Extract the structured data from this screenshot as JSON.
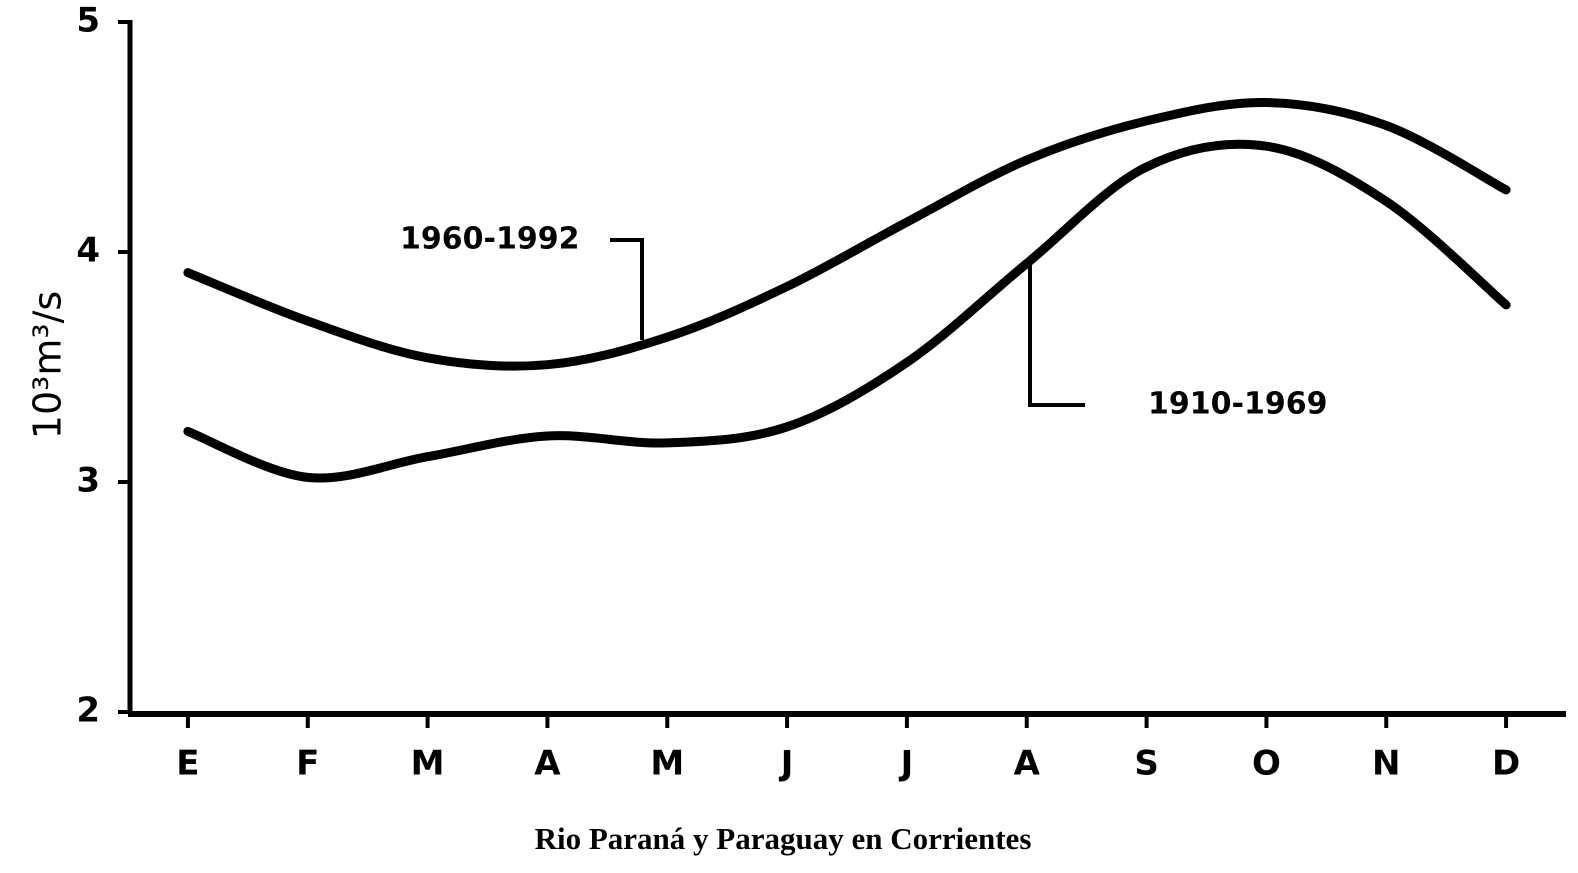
{
  "chart_data": {
    "type": "line",
    "title": "Rio Paraná y Paraguay en Corrientes",
    "y_label": "10³m³/s",
    "categories": [
      "E",
      "F",
      "M",
      "A",
      "M",
      "J",
      "J",
      "A",
      "S",
      "O",
      "N",
      "D"
    ],
    "series": [
      {
        "name": "1960-1992",
        "color": "#000000",
        "values": [
          3.91,
          3.7,
          3.54,
          3.51,
          3.63,
          3.85,
          4.13,
          4.4,
          4.57,
          4.65,
          4.55,
          4.27
        ]
      },
      {
        "name": "1910-1969",
        "color": "#000000",
        "values": [
          3.22,
          3.02,
          3.11,
          3.2,
          3.17,
          3.24,
          3.52,
          3.95,
          4.37,
          4.46,
          4.22,
          3.77
        ]
      }
    ],
    "ylim": [
      2,
      5
    ],
    "yticks": [
      2,
      3,
      4,
      5
    ],
    "grid": false
  }
}
